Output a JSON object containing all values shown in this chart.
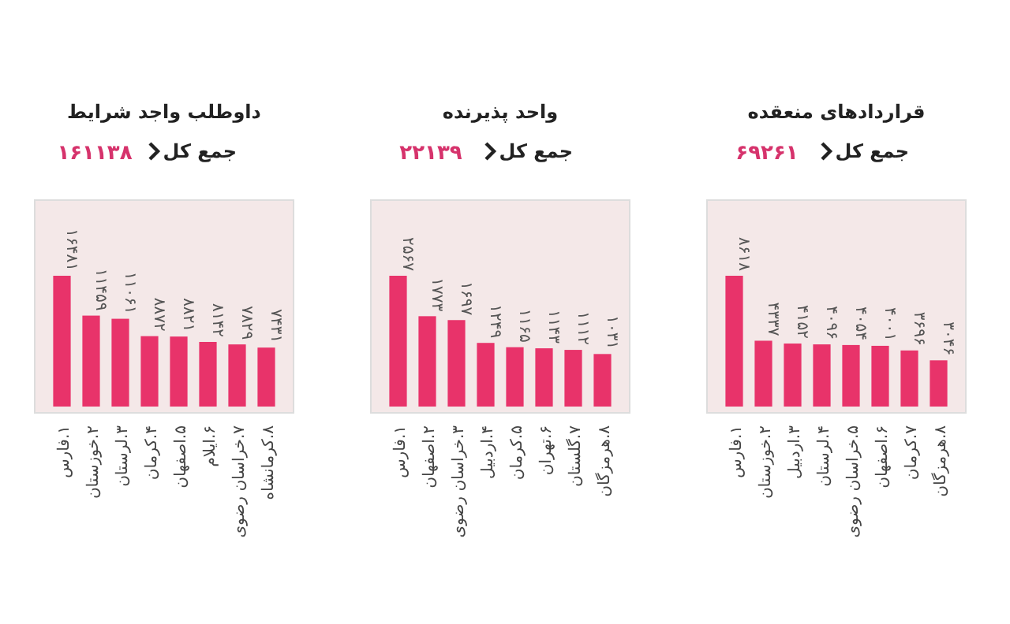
{
  "chart_data": [
    {
      "type": "bar",
      "title": "قراردادهای منعقده",
      "subtitle": "جمع کل",
      "annotations": [
        "۶۹۲۶۱"
      ],
      "color": "#e8336a",
      "categories": [
        "۱.فارس",
        "۲.خوزستان",
        "۳.اردبیل",
        "۴.لرستان",
        "۵.خراسان رضوی",
        "۶.اصفهان",
        "۷.کرمان",
        "۸.هرمزگان"
      ],
      "values": [
        8618,
        4337,
        4152,
        4096,
        4054,
        4001,
        3696,
        3046
      ],
      "value_labels": [
        "۸۶۱۸",
        "۴۳۳۷",
        "۴۱۵۲",
        "۴۰۹۶",
        "۴۰۵۴",
        "۴۰۰۱",
        "۳۶۹۶",
        "۳۰۴۶"
      ]
    },
    {
      "type": "bar",
      "title": "واحد پذیرنده",
      "subtitle": "جمع کل",
      "annotations": [
        "۲۲۱۳۹"
      ],
      "color": "#e8336a",
      "categories": [
        "۱.فارس",
        "۲.اصفهان",
        "۳.خراسان رضوی",
        "۴.اردبیل",
        "۵.کرمان",
        "۶.تهران",
        "۷.گلستان",
        "۸.هرمزگان"
      ],
      "values": [
        2567,
        1773,
        1697,
        1249,
        1165,
        1143,
        1112,
        1031
      ],
      "value_labels": [
        "۲۵۶۷",
        "۱۷۷۳",
        "۱۶۹۷",
        "۱۲۴۹",
        "۱۱۶۵",
        "۱۱۴۳",
        "۱۱۱۲",
        "۱۰۳۱"
      ]
    },
    {
      "type": "bar",
      "title": "داوطلب واجد شرایط",
      "subtitle": "جمع کل",
      "annotations": [
        "۱۶۱۱۳۸"
      ],
      "color": "#e8336a",
      "categories": [
        "۱.فارس",
        "۲.خوزستان",
        "۳.لرستان",
        "۴.کرمان",
        "۵.اصفهان",
        "۶.ایلام",
        "۷.خراسان رضوی",
        "۸.کرمانشاه"
      ],
      "values": [
        16481,
        11459,
        11061,
        8872,
        8821,
        8142,
        7829,
        7431
      ],
      "value_labels": [
        "۱۶۴۸۱",
        "۱۱۴۵۹",
        "۱۱۰۶۱",
        "۸۸۷۲",
        "۸۸۲۱",
        "۸۱۴۲",
        "۷۸۲۹",
        "۷۴۳۱"
      ]
    }
  ]
}
